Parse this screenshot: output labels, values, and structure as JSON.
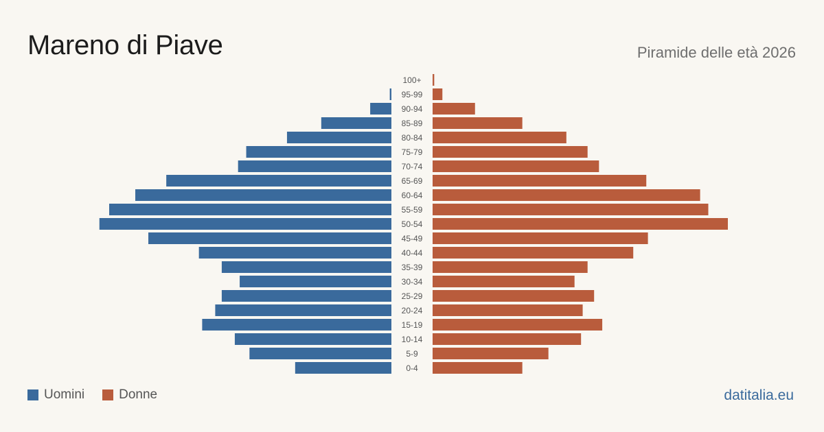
{
  "header": {
    "title": "Mareno di Piave",
    "subtitle": "Piramide delle età 2026"
  },
  "legend": {
    "men_label": "Uomini",
    "women_label": "Donne"
  },
  "footer": {
    "source": "datitalia.eu"
  },
  "colors": {
    "men": "#3a6a9c",
    "women": "#b95c3c",
    "background": "#f9f7f2"
  },
  "chart_data": {
    "type": "bar",
    "orientation": "horizontal-pyramid",
    "categories": [
      "100+",
      "95-99",
      "90-94",
      "85-89",
      "80-84",
      "75-79",
      "70-74",
      "65-69",
      "60-64",
      "55-59",
      "50-54",
      "45-49",
      "40-44",
      "35-39",
      "30-34",
      "25-29",
      "20-24",
      "15-19",
      "10-14",
      "5-9",
      "0-4"
    ],
    "series": [
      {
        "name": "Uomini",
        "values": [
          0,
          1,
          13,
          43,
          64,
          89,
          94,
          138,
          157,
          173,
          179,
          149,
          118,
          104,
          93,
          104,
          108,
          116,
          96,
          87,
          59
        ]
      },
      {
        "name": "Donne",
        "values": [
          1,
          6,
          26,
          55,
          82,
          95,
          102,
          131,
          164,
          169,
          181,
          132,
          123,
          95,
          87,
          99,
          92,
          104,
          91,
          71,
          55
        ]
      }
    ],
    "legend_position": "bottom-left",
    "grid": false
  }
}
